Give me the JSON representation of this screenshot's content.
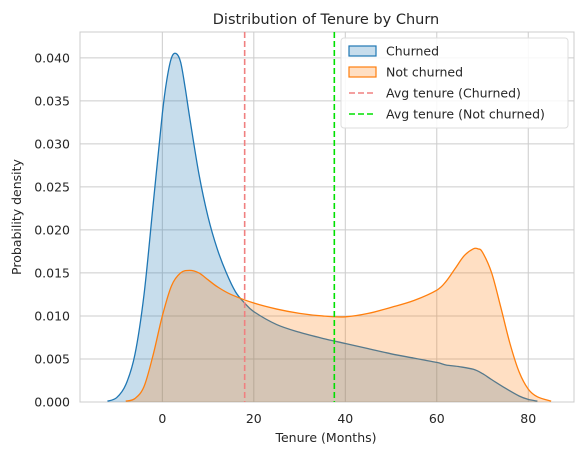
{
  "chart_data": {
    "type": "area",
    "title": "Distribution of Tenure by Churn",
    "xlabel": "Tenure (Months)",
    "ylabel": "Probability density",
    "xlim": [
      -18,
      90
    ],
    "ylim": [
      0,
      0.043
    ],
    "x_ticks": [
      0,
      20,
      40,
      60,
      80
    ],
    "y_ticks": [
      0.0,
      0.005,
      0.01,
      0.015,
      0.02,
      0.025,
      0.03,
      0.035,
      0.04
    ],
    "y_tick_labels": [
      "0.000",
      "0.005",
      "0.010",
      "0.015",
      "0.020",
      "0.025",
      "0.030",
      "0.035",
      "0.040"
    ],
    "grid": true,
    "legend_position": "top-right",
    "series": [
      {
        "name": "Churned",
        "kind": "kde",
        "color": "#1f77b4",
        "fill": "#c4d9ea",
        "x": [
          -12,
          -10,
          -8,
          -6,
          -4,
          -2,
          0,
          1,
          2,
          3,
          4,
          5,
          6,
          8,
          10,
          12,
          14,
          16,
          18,
          20,
          25,
          30,
          35,
          40,
          45,
          50,
          55,
          60,
          62,
          65,
          68,
          70,
          72,
          75,
          78,
          80,
          82
        ],
        "y": [
          0.0001,
          0.0005,
          0.002,
          0.0055,
          0.0125,
          0.023,
          0.0335,
          0.0375,
          0.04,
          0.0405,
          0.0395,
          0.0365,
          0.033,
          0.0265,
          0.0215,
          0.0178,
          0.015,
          0.0128,
          0.0115,
          0.0105,
          0.009,
          0.0081,
          0.0074,
          0.0068,
          0.0062,
          0.0056,
          0.0051,
          0.0046,
          0.0043,
          0.0041,
          0.0038,
          0.0033,
          0.0026,
          0.0016,
          0.0007,
          0.0003,
          0.0001
        ]
      },
      {
        "name": "Not churned",
        "kind": "kde",
        "color": "#ff7f0e",
        "fill": "#fdd5b5",
        "x": [
          -8,
          -6,
          -4,
          -2,
          0,
          2,
          4,
          6,
          8,
          10,
          12,
          15,
          20,
          25,
          30,
          35,
          40,
          45,
          50,
          55,
          60,
          62,
          64,
          66,
          68,
          69,
          70,
          72,
          74,
          76,
          78,
          80,
          82,
          85
        ],
        "y": [
          0.0001,
          0.0004,
          0.0018,
          0.0055,
          0.01,
          0.0135,
          0.015,
          0.0153,
          0.015,
          0.0142,
          0.0134,
          0.0125,
          0.0115,
          0.0108,
          0.0103,
          0.01,
          0.0099,
          0.0103,
          0.011,
          0.0118,
          0.013,
          0.014,
          0.0155,
          0.017,
          0.0178,
          0.0178,
          0.0174,
          0.015,
          0.011,
          0.0068,
          0.0035,
          0.0015,
          0.0006,
          0.0001
        ]
      }
    ],
    "vlines": [
      {
        "name": "Avg tenure (Churned)",
        "x": 18.0,
        "color": "#f08080",
        "style": "dashed"
      },
      {
        "name": "Avg tenure (Not churned)",
        "x": 37.6,
        "color": "#00e000",
        "style": "dashed"
      }
    ]
  }
}
